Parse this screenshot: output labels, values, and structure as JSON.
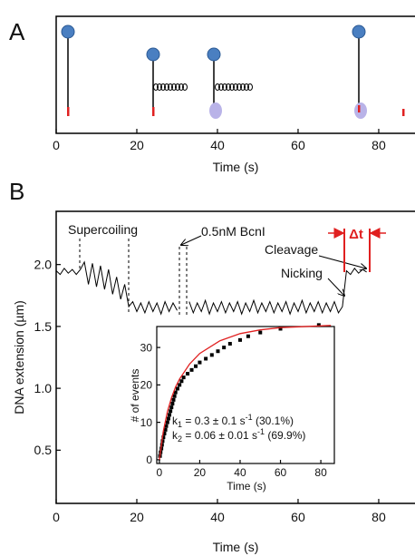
{
  "chart_data": [
    {
      "type": "schematic",
      "panel": "A",
      "xlabel": "Time (s)",
      "xlim": [
        0,
        89
      ],
      "xticks": [
        0,
        20,
        40,
        60,
        80
      ]
    },
    {
      "type": "line",
      "panel": "B",
      "xlabel": "Time (s)",
      "ylabel": "DNA extension (µm)",
      "color": "#000000",
      "xlim": [
        0,
        89
      ],
      "ylim": [
        0.07,
        2.43
      ],
      "xticks": [
        0,
        20,
        40,
        60,
        80
      ],
      "yticks": [
        {
          "value": 2,
          "label": "2.0"
        },
        {
          "value": 1.5,
          "label": "1.5"
        },
        {
          "value": 1,
          "label": "1.0"
        },
        {
          "value": 0.5,
          "label": "0.5"
        }
      ],
      "annotations": [
        "Supercoiling",
        "0.5nM BcnI",
        "Cleavage",
        "Nicking",
        "Δt"
      ],
      "x": [
        0,
        1,
        2,
        3,
        4,
        5,
        6,
        7,
        8,
        9,
        10,
        11,
        12,
        13,
        14,
        15,
        16,
        17,
        18,
        19,
        20,
        21,
        22,
        23,
        24,
        25,
        26,
        27,
        28,
        29,
        30,
        31,
        32,
        33,
        34,
        35,
        36,
        37,
        38,
        39,
        40,
        41,
        42,
        43,
        44,
        45,
        46,
        47,
        48,
        49,
        50,
        51,
        52,
        53,
        54,
        55,
        56,
        57,
        58,
        59,
        60,
        61,
        62,
        63,
        64,
        65,
        66,
        67,
        68,
        69,
        70,
        71,
        72,
        73,
        74,
        75,
        76,
        77
      ],
      "values": [
        1.95,
        1.92,
        1.97,
        1.93,
        1.96,
        1.92,
        1.96,
        2.02,
        1.84,
        2.01,
        1.82,
        1.99,
        1.8,
        1.96,
        1.76,
        1.9,
        1.72,
        1.84,
        1.66,
        1.7,
        1.62,
        1.69,
        1.61,
        1.7,
        1.62,
        1.69,
        1.6,
        1.7,
        1.62,
        1.69,
        1.63,
        null,
        null,
        1.7,
        1.61,
        1.69,
        1.62,
        1.71,
        1.6,
        1.69,
        1.62,
        1.7,
        1.61,
        1.69,
        1.62,
        1.7,
        1.6,
        1.69,
        1.62,
        1.71,
        1.61,
        1.69,
        1.62,
        1.7,
        1.61,
        1.69,
        1.62,
        1.7,
        1.6,
        1.69,
        1.62,
        1.71,
        1.61,
        1.69,
        1.62,
        1.7,
        1.61,
        1.69,
        1.62,
        1.7,
        1.61,
        1.66,
        1.95,
        1.92,
        1.97,
        1.93,
        1.96,
        1.94
      ]
    },
    {
      "type": "scatter",
      "xlabel": "Time (s)",
      "ylabel": "# of events",
      "xlim": [
        -1.3,
        86.7
      ],
      "ylim": [
        -1,
        35.6
      ],
      "xticks": [
        0,
        20,
        40,
        60,
        80
      ],
      "yticks": [
        0,
        10,
        20,
        30
      ],
      "series": [
        {
          "color": "#000000",
          "marker": "square",
          "x": [
            0.3,
            0.6,
            1,
            1.3,
            1.6,
            2,
            2.5,
            3,
            3.4,
            4,
            4.5,
            5,
            5.5,
            6,
            6.5,
            7,
            7.5,
            8,
            9,
            10,
            11,
            12,
            14,
            16,
            18,
            20,
            23,
            26,
            29,
            32,
            35,
            40,
            44,
            50,
            60,
            79
          ],
          "values": [
            1,
            2,
            3,
            4,
            5,
            6,
            7,
            8,
            9,
            10,
            11,
            12,
            13,
            14,
            15,
            16,
            17,
            18,
            19,
            20,
            21,
            22,
            23,
            24,
            25,
            26,
            27,
            28,
            29,
            30,
            31,
            32,
            33,
            34,
            35,
            36
          ]
        },
        {
          "color": "#e02020",
          "marker": "line",
          "x": [
            0,
            2,
            4,
            6,
            8,
            10,
            15,
            20,
            30,
            40,
            50,
            60,
            85
          ],
          "values": [
            0,
            7.7,
            12.9,
            16.6,
            19.4,
            21.6,
            25.6,
            28.4,
            31.8,
            33.7,
            34.7,
            35.3,
            35.9
          ]
        }
      ],
      "rates": [
        {
          "k": "k",
          "sub": "1",
          "text": " = 0.3 ± 0.1 s",
          "sup": "-1",
          "tail": " (30.1%)"
        },
        {
          "k": "k",
          "sub": "2",
          "text": " = 0.06 ± 0.01 s",
          "sup": "-1",
          "tail": " (69.9%)"
        }
      ]
    }
  ]
}
